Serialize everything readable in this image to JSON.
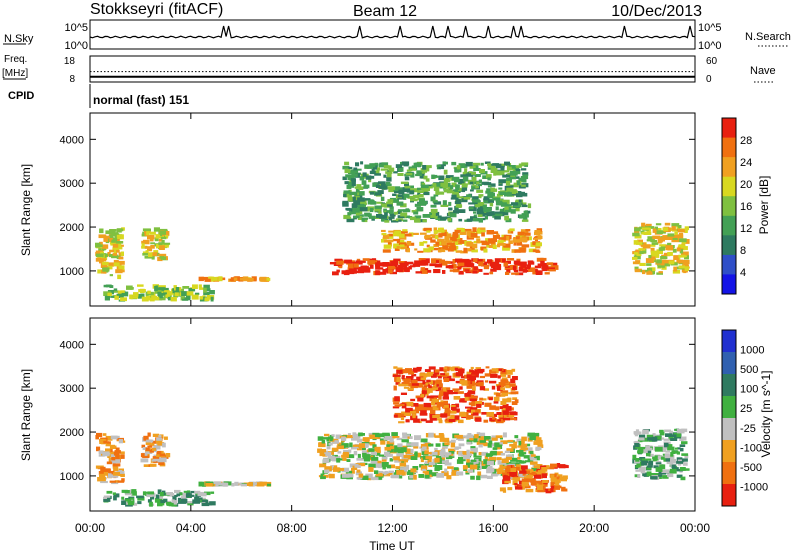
{
  "header": {
    "station": "Stokkseyri (fitACF)",
    "beam": "Beam 12",
    "date": "10/Dec/2013"
  },
  "labels": {
    "nsky": "N.Sky",
    "freq": "Freq.",
    "mhz": "[MHz]",
    "cpid": "CPID",
    "nsearch": "N.Search",
    "nave": "Nave",
    "cpid_value": "normal (fast) 151",
    "exp_label": "10^5",
    "zero_label": "10^0"
  },
  "chart_data": [
    {
      "type": "line",
      "name": "noise",
      "x_range_hours": [
        0,
        24
      ],
      "ylabels_left": [
        "10^5",
        "10^0"
      ],
      "ylabels_right": [
        "10^5",
        "10^0"
      ],
      "spikes_hours": [
        5.3,
        5.5,
        10.7,
        12.3,
        13.6,
        14.2,
        14.9,
        15.8,
        16.8,
        17.1,
        21.2,
        23.8
      ]
    },
    {
      "type": "line",
      "name": "frequency",
      "left_ticks": [
        "18",
        "8"
      ],
      "right_ticks": [
        "60",
        "0"
      ],
      "freq_level": 10,
      "dotted_level": 12
    },
    {
      "type": "heatmap",
      "name": "power",
      "ylabel": "Slant Range [km]",
      "yticks": [
        "1000",
        "2000",
        "3000",
        "4000"
      ],
      "ylim": [
        200,
        4600
      ],
      "colorbar_label": "Power [dB]",
      "colorbar_ticks": [
        "4",
        "8",
        "12",
        "16",
        "20",
        "24",
        "28"
      ],
      "colors": [
        "#1414e6",
        "#2f4fc8",
        "#2e7a60",
        "#43a055",
        "#7fc040",
        "#d8d820",
        "#f0a020",
        "#f07010",
        "#e82010"
      ],
      "blobs": [
        {
          "t0": 0.2,
          "t1": 1.4,
          "r0": 800,
          "r1": 2000,
          "level": 5
        },
        {
          "t0": 2.0,
          "t1": 3.2,
          "r0": 1200,
          "r1": 2000,
          "level": 5
        },
        {
          "t0": 4.3,
          "t1": 7.2,
          "r0": 750,
          "r1": 880,
          "level": 6
        },
        {
          "t0": 0.5,
          "t1": 5.0,
          "r0": 300,
          "r1": 700,
          "level": 4
        },
        {
          "t0": 9.5,
          "t1": 18.6,
          "r0": 900,
          "r1": 1300,
          "level": 8
        },
        {
          "t0": 11.5,
          "t1": 18.0,
          "r0": 1400,
          "r1": 2000,
          "level": 6
        },
        {
          "t0": 10.0,
          "t1": 17.5,
          "r0": 2100,
          "r1": 3500,
          "level": 3
        },
        {
          "t0": 21.5,
          "t1": 23.8,
          "r0": 900,
          "r1": 2100,
          "level": 5
        }
      ]
    },
    {
      "type": "heatmap",
      "name": "velocity",
      "xlabel": "Time UT",
      "xticks": [
        "00:00",
        "04:00",
        "08:00",
        "12:00",
        "16:00",
        "20:00",
        "00:00"
      ],
      "ylabel": "Slant Range [km]",
      "yticks": [
        "1000",
        "2000",
        "3000",
        "4000"
      ],
      "ylim": [
        200,
        4600
      ],
      "colorbar_label": "Velocity [m s^-1]",
      "colorbar_ticks": [
        "1000",
        "500",
        "100",
        "25",
        "-25",
        "-100",
        "-500",
        "-1000"
      ],
      "colors": [
        "#2030d0",
        "#3060b0",
        "#2f7a60",
        "#40b040",
        "#c0c0c0",
        "#f0a020",
        "#f07010",
        "#e82010"
      ],
      "blobs": [
        {
          "t0": 0.2,
          "t1": 1.4,
          "r0": 800,
          "r1": 2000,
          "level": 5
        },
        {
          "t0": 2.0,
          "t1": 3.2,
          "r0": 1200,
          "r1": 2000,
          "level": 5
        },
        {
          "t0": 4.3,
          "t1": 7.2,
          "r0": 750,
          "r1": 880,
          "level": 4
        },
        {
          "t0": 0.5,
          "t1": 5.0,
          "r0": 300,
          "r1": 700,
          "level": 3
        },
        {
          "t0": 9.0,
          "t1": 18.0,
          "r0": 900,
          "r1": 2000,
          "level": 4
        },
        {
          "t0": 16.2,
          "t1": 19.0,
          "r0": 600,
          "r1": 1300,
          "level": 6
        },
        {
          "t0": 12.0,
          "t1": 17.0,
          "r0": 2200,
          "r1": 3500,
          "level": 6
        },
        {
          "t0": 21.5,
          "t1": 23.8,
          "r0": 900,
          "r1": 2100,
          "level": 3
        }
      ]
    }
  ]
}
